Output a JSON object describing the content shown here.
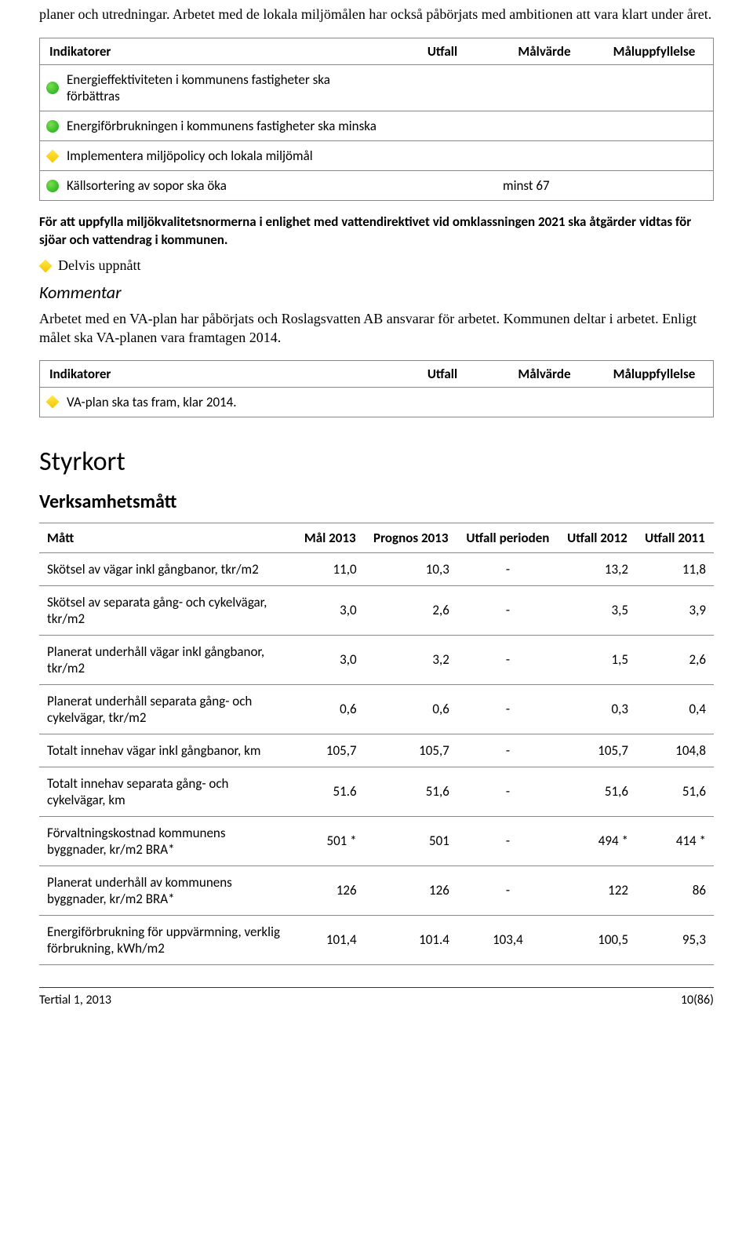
{
  "intro": "planer och utredningar. Arbetet med de lokala miljömålen har också påbörjats med ambitionen att vara klart under året.",
  "table1": {
    "headers": {
      "c1": "Indikatorer",
      "c2": "Utfall",
      "c3": "Målvärde",
      "c4": "Måluppfyllelse"
    },
    "rows": [
      {
        "icon": "green",
        "text": "Energieffektiviteten i kommunens fastigheter ska förbättras",
        "malv": ""
      },
      {
        "icon": "green",
        "text": "Energiförbrukningen i kommunens fastigheter ska minska",
        "malv": ""
      },
      {
        "icon": "yellow",
        "text": "Implementera miljöpolicy och lokala miljömål",
        "malv": ""
      },
      {
        "icon": "green",
        "text": "Källsortering av sopor ska öka",
        "malv": "minst 67"
      }
    ]
  },
  "bold1": "För att uppfylla miljökvalitetsnormerna i enlighet med vattendirektivet vid omklassningen 2021 ska åtgärder vidtas för sjöar och vattendrag i kommunen.",
  "status1": "Delvis uppnått",
  "kommentar_label": "Kommentar",
  "body1": "Arbetet med en VA-plan har påbörjats och Roslagsvatten AB ansvarar för arbetet. Kommunen deltar i arbetet. Enligt målet ska VA-planen vara framtagen 2014.",
  "table2": {
    "headers": {
      "c1": "Indikatorer",
      "c2": "Utfall",
      "c3": "Målvärde",
      "c4": "Måluppfyllelse"
    },
    "rows": [
      {
        "icon": "yellow",
        "text": "VA-plan ska tas fram, klar 2014."
      }
    ]
  },
  "styrkort_title": "Styrkort",
  "verksam_title": "Verksamhetsmått",
  "metrics": {
    "headers": [
      "Mått",
      "Mål 2013",
      "Prognos 2013",
      "Utfall perioden",
      "Utfall 2012",
      "Utfall 2011"
    ],
    "rows": [
      [
        "Skötsel av vägar inkl gångbanor, tkr/m2",
        "11,0",
        "10,3",
        "-",
        "13,2",
        "11,8"
      ],
      [
        "Skötsel av separata gång- och cykelvägar, tkr/m2",
        "3,0",
        "2,6",
        "-",
        "3,5",
        "3,9"
      ],
      [
        "Planerat underhåll vägar inkl gångbanor, tkr/m2",
        "3,0",
        "3,2",
        "-",
        "1,5",
        "2,6"
      ],
      [
        "Planerat underhåll separata gång- och cykelvägar, tkr/m2",
        "0,6",
        "0,6",
        "-",
        "0,3",
        "0,4"
      ],
      [
        "Totalt innehav vägar inkl gångbanor, km",
        "105,7",
        "105,7",
        "-",
        "105,7",
        "104,8"
      ],
      [
        "Totalt innehav separata gång- och cykelvägar, km",
        "51.6",
        "51,6",
        "-",
        "51,6",
        "51,6"
      ],
      [
        "Förvaltningskostnad kommunens byggnader, kr/m2 BRA*",
        "501 *",
        "501",
        "-",
        "494 *",
        "414 *"
      ],
      [
        "Planerat underhåll av kommunens byggnader, kr/m2 BRA*",
        "126",
        "126",
        "-",
        "122",
        "86"
      ],
      [
        "Energiförbrukning för uppvärmning, verklig förbrukning, kWh/m2",
        "101,4",
        "101.4",
        "103,4",
        "100,5",
        "95,3"
      ]
    ]
  },
  "footer": {
    "left": "Tertial 1, 2013",
    "right": "10(86)"
  }
}
